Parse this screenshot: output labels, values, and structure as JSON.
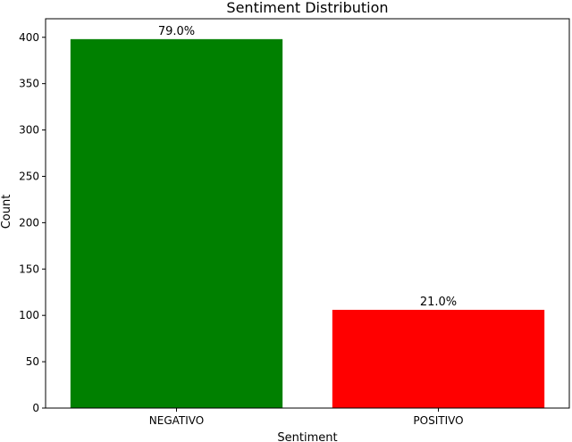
{
  "chart_data": {
    "type": "bar",
    "title": "Sentiment Distribution",
    "xlabel": "Sentiment",
    "ylabel": "Count",
    "categories": [
      "NEGATIVO",
      "POSITIVO"
    ],
    "values": [
      398,
      106
    ],
    "bar_labels": [
      "79.0%",
      "21.0%"
    ],
    "bar_colors": [
      "#008000",
      "#ff0000"
    ],
    "ylim": [
      0,
      420
    ],
    "yticks": [
      0,
      50,
      100,
      150,
      200,
      250,
      300,
      350,
      400
    ],
    "grid": false,
    "legend": "none"
  }
}
